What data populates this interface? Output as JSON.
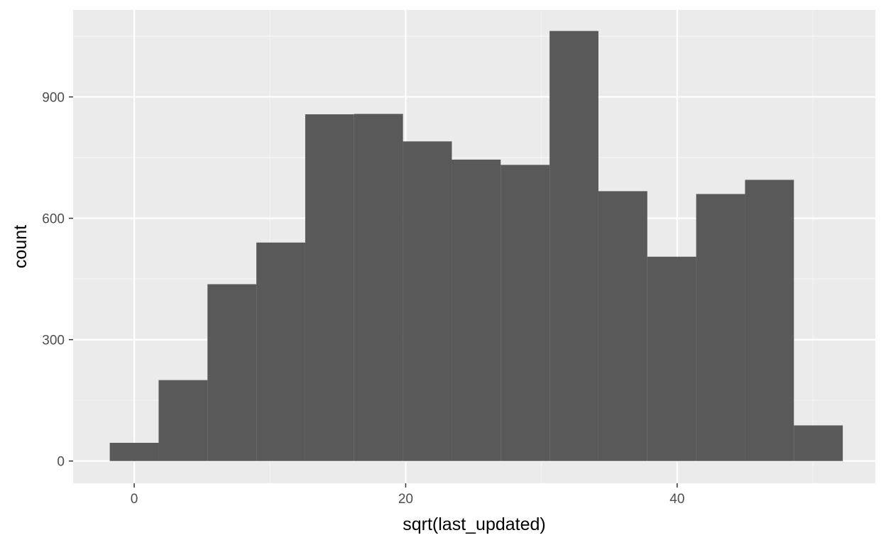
{
  "chart_data": {
    "type": "bar",
    "subtype": "histogram",
    "title": "",
    "xlabel": "sqrt(last_updated)",
    "ylabel": "count",
    "xlim": [
      -4.5,
      54.6
    ],
    "ylim": [
      -55,
      1115
    ],
    "x_ticks": [
      0,
      20,
      40
    ],
    "x_tick_labels": [
      "0",
      "20",
      "40"
    ],
    "y_ticks": [
      0,
      300,
      600,
      900
    ],
    "y_tick_labels": [
      "0",
      "300",
      "600",
      "900"
    ],
    "grid": true,
    "legend": "none",
    "bins": [
      {
        "x0": -1.8,
        "x1": 1.8,
        "count": 45
      },
      {
        "x0": 1.8,
        "x1": 5.4,
        "count": 200
      },
      {
        "x0": 5.4,
        "x1": 9.0,
        "count": 437
      },
      {
        "x0": 9.0,
        "x1": 12.6,
        "count": 540
      },
      {
        "x0": 12.6,
        "x1": 16.2,
        "count": 857
      },
      {
        "x0": 16.2,
        "x1": 19.8,
        "count": 858
      },
      {
        "x0": 19.8,
        "x1": 23.4,
        "count": 790
      },
      {
        "x0": 23.4,
        "x1": 27.0,
        "count": 745
      },
      {
        "x0": 27.0,
        "x1": 30.6,
        "count": 732
      },
      {
        "x0": 30.6,
        "x1": 34.2,
        "count": 1063
      },
      {
        "x0": 34.2,
        "x1": 37.8,
        "count": 667
      },
      {
        "x0": 37.8,
        "x1": 41.4,
        "count": 505
      },
      {
        "x0": 41.4,
        "x1": 45.0,
        "count": 660
      },
      {
        "x0": 45.0,
        "x1": 48.6,
        "count": 695
      },
      {
        "x0": 48.6,
        "x1": 52.2,
        "count": 88
      }
    ],
    "colors": {
      "panel_background": "#ebebeb",
      "grid_major": "#ffffff",
      "grid_minor": "#f5f5f5",
      "bar_fill": "#595959",
      "tick_color": "#333333"
    }
  }
}
